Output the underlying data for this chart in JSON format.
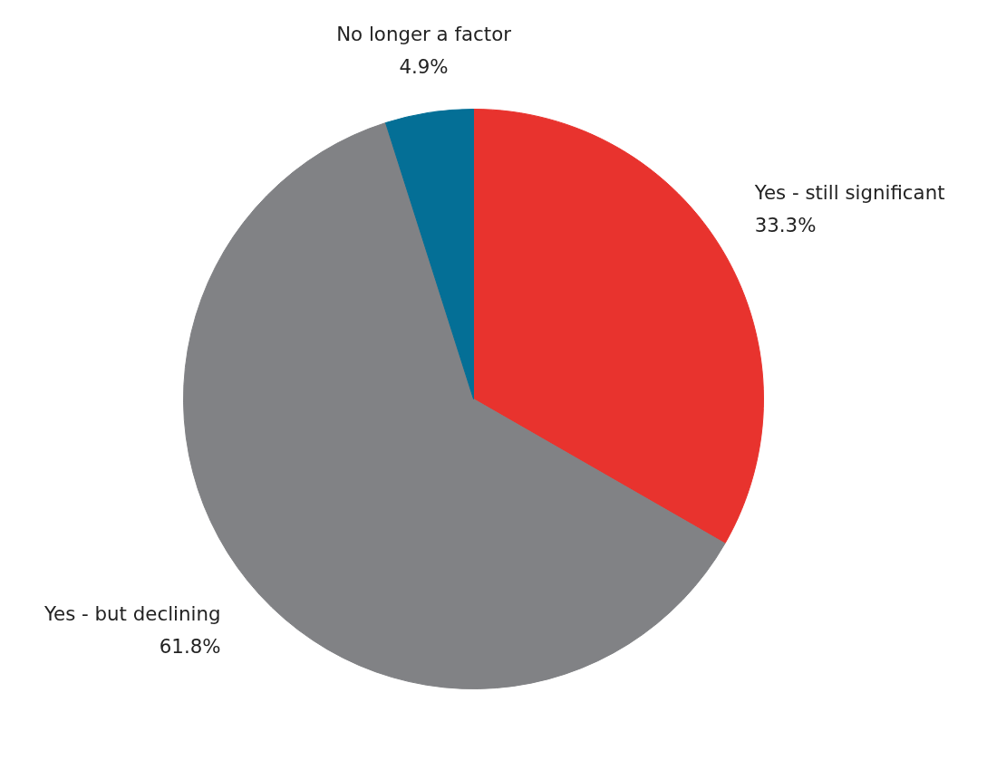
{
  "chart_data": {
    "type": "pie",
    "categories": [
      "Yes - still significant",
      "Yes - but declining",
      "No longer a factor"
    ],
    "values": [
      33.3,
      61.8,
      4.9
    ],
    "colors": [
      "#e8332e",
      "#818285",
      "#046f96"
    ],
    "value_labels": [
      "33.3%",
      "61.8%",
      "4.9%"
    ]
  }
}
